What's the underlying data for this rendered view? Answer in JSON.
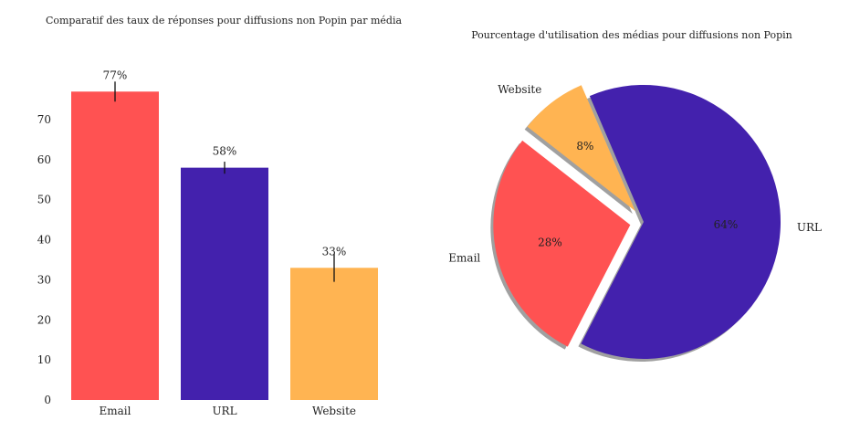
{
  "chart_data": [
    {
      "type": "bar",
      "title": "Comparatif des taux de réponses pour diffusions non Popin par média",
      "categories": [
        "Email",
        "URL",
        "Website"
      ],
      "values": [
        77,
        58,
        33
      ],
      "error": [
        2.5,
        1.5,
        3.5
      ],
      "data_labels": [
        "77%",
        "58%",
        "33%"
      ],
      "colors": [
        "#ff5252",
        "#4321ad",
        "#ffb452"
      ],
      "ylim": [
        0,
        80
      ],
      "yticks": [
        0,
        10,
        20,
        30,
        40,
        50,
        60,
        70
      ],
      "xlabel": "",
      "ylabel": "",
      "grid": false
    },
    {
      "type": "pie",
      "title": "Pourcentage d'utilisation des médias pour diffusions non Popin",
      "labels": [
        "Email",
        "URL",
        "Website"
      ],
      "values": [
        28,
        64,
        8
      ],
      "pct_labels": [
        "28%",
        "64%",
        "8%"
      ],
      "colors": [
        "#ff5252",
        "#4321ad",
        "#ffb452"
      ],
      "explode": [
        0.1,
        0,
        0.1
      ],
      "shadow": true,
      "start_angle": 142
    }
  ]
}
